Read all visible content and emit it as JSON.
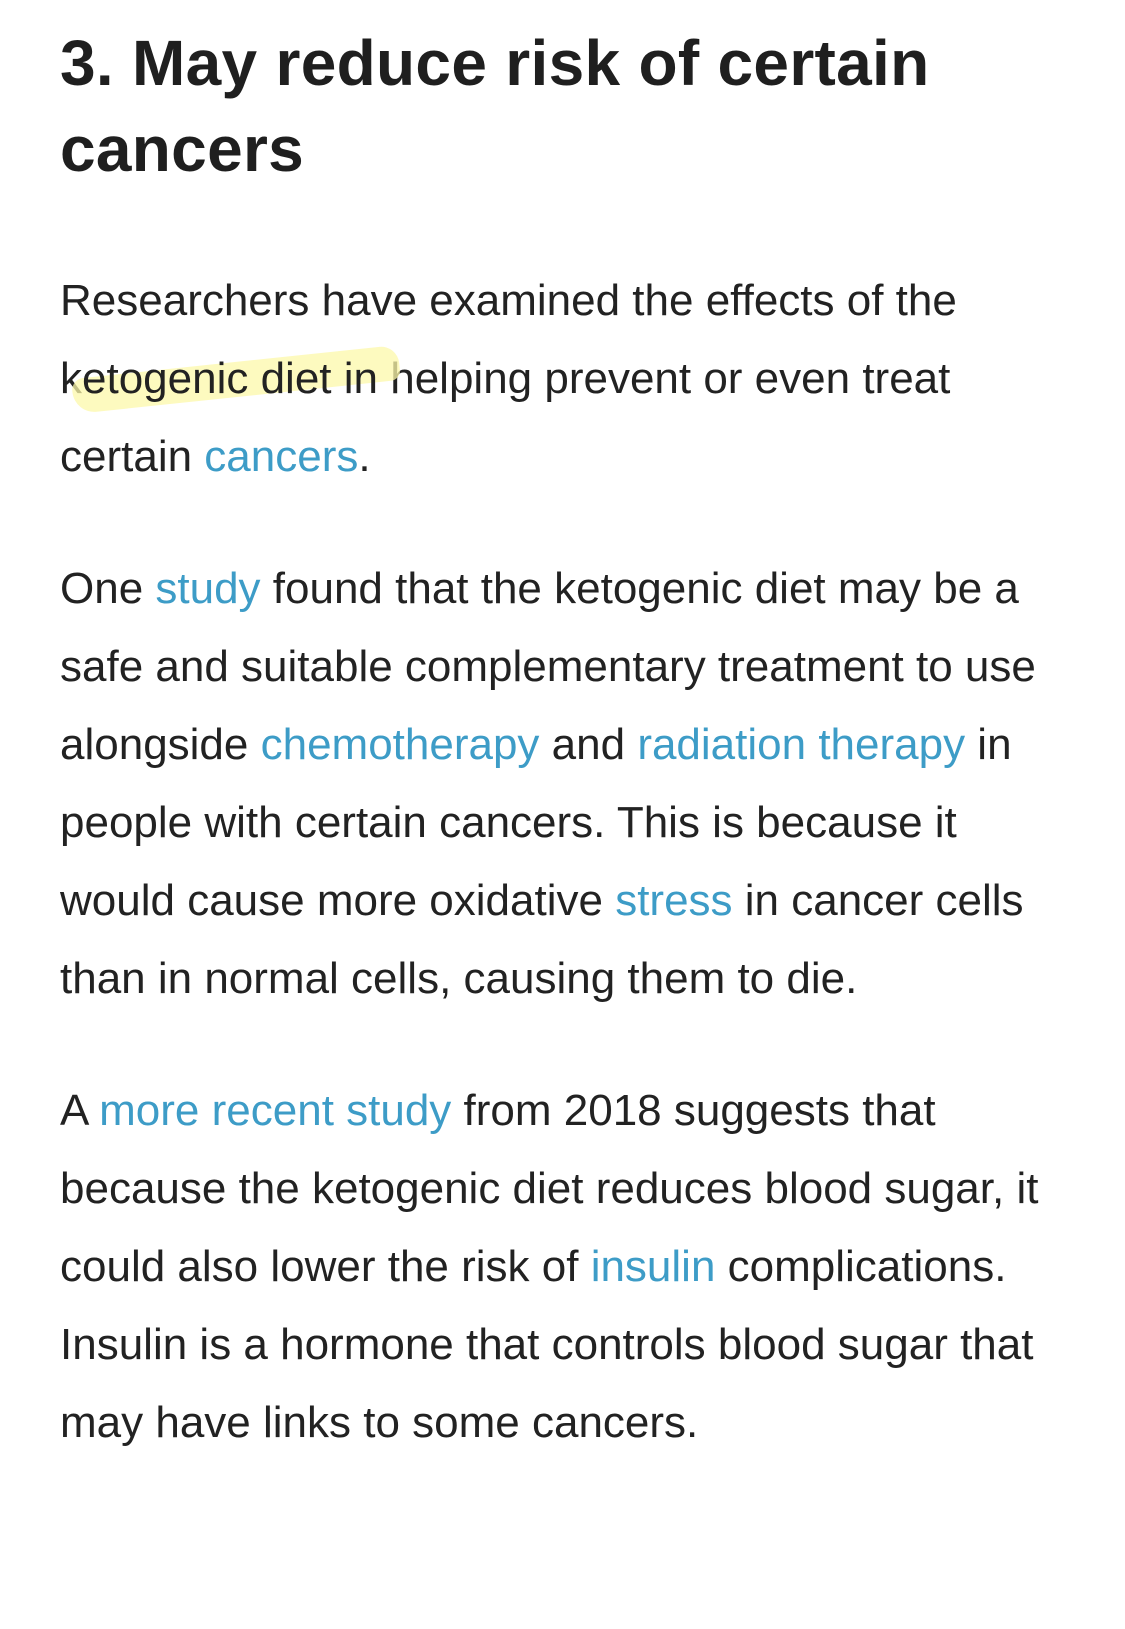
{
  "article": {
    "heading": "3. May reduce risk of certain cancers",
    "p1": {
      "t1": "Researchers have examined the effects of the k",
      "highlight": "etogenic diet in",
      "t2": " helping prevent or even treat certain ",
      "link_cancers": "cancers",
      "t3": "."
    },
    "p2": {
      "t1": "One ",
      "link_study": "study",
      "t2": " found that the ketogenic diet may be a safe and suitable complementary treatment to use alongside ",
      "link_chemotherapy": "chemotherapy",
      "t3": " and ",
      "link_radiation": "radiation therapy",
      "t4": " in people with certain cancers. This is because it would cause more oxidative ",
      "link_stress": "stress",
      "t5": " in cancer cells than in normal cells, causing them to die."
    },
    "p3": {
      "t1": "A ",
      "link_recent_study": "more recent study",
      "t2": " from 2018 suggests that because the ketogenic diet reduces blood sugar, it could also lower the risk of ",
      "link_insulin": "insulin",
      "t3": " complications. Insulin is a hormone that controls blood sugar that may have links to some cancers."
    }
  },
  "colors": {
    "link": "#3d9cc7",
    "text": "#222222",
    "heading": "#1f1f1f",
    "highlight": "#fcf8aa"
  }
}
